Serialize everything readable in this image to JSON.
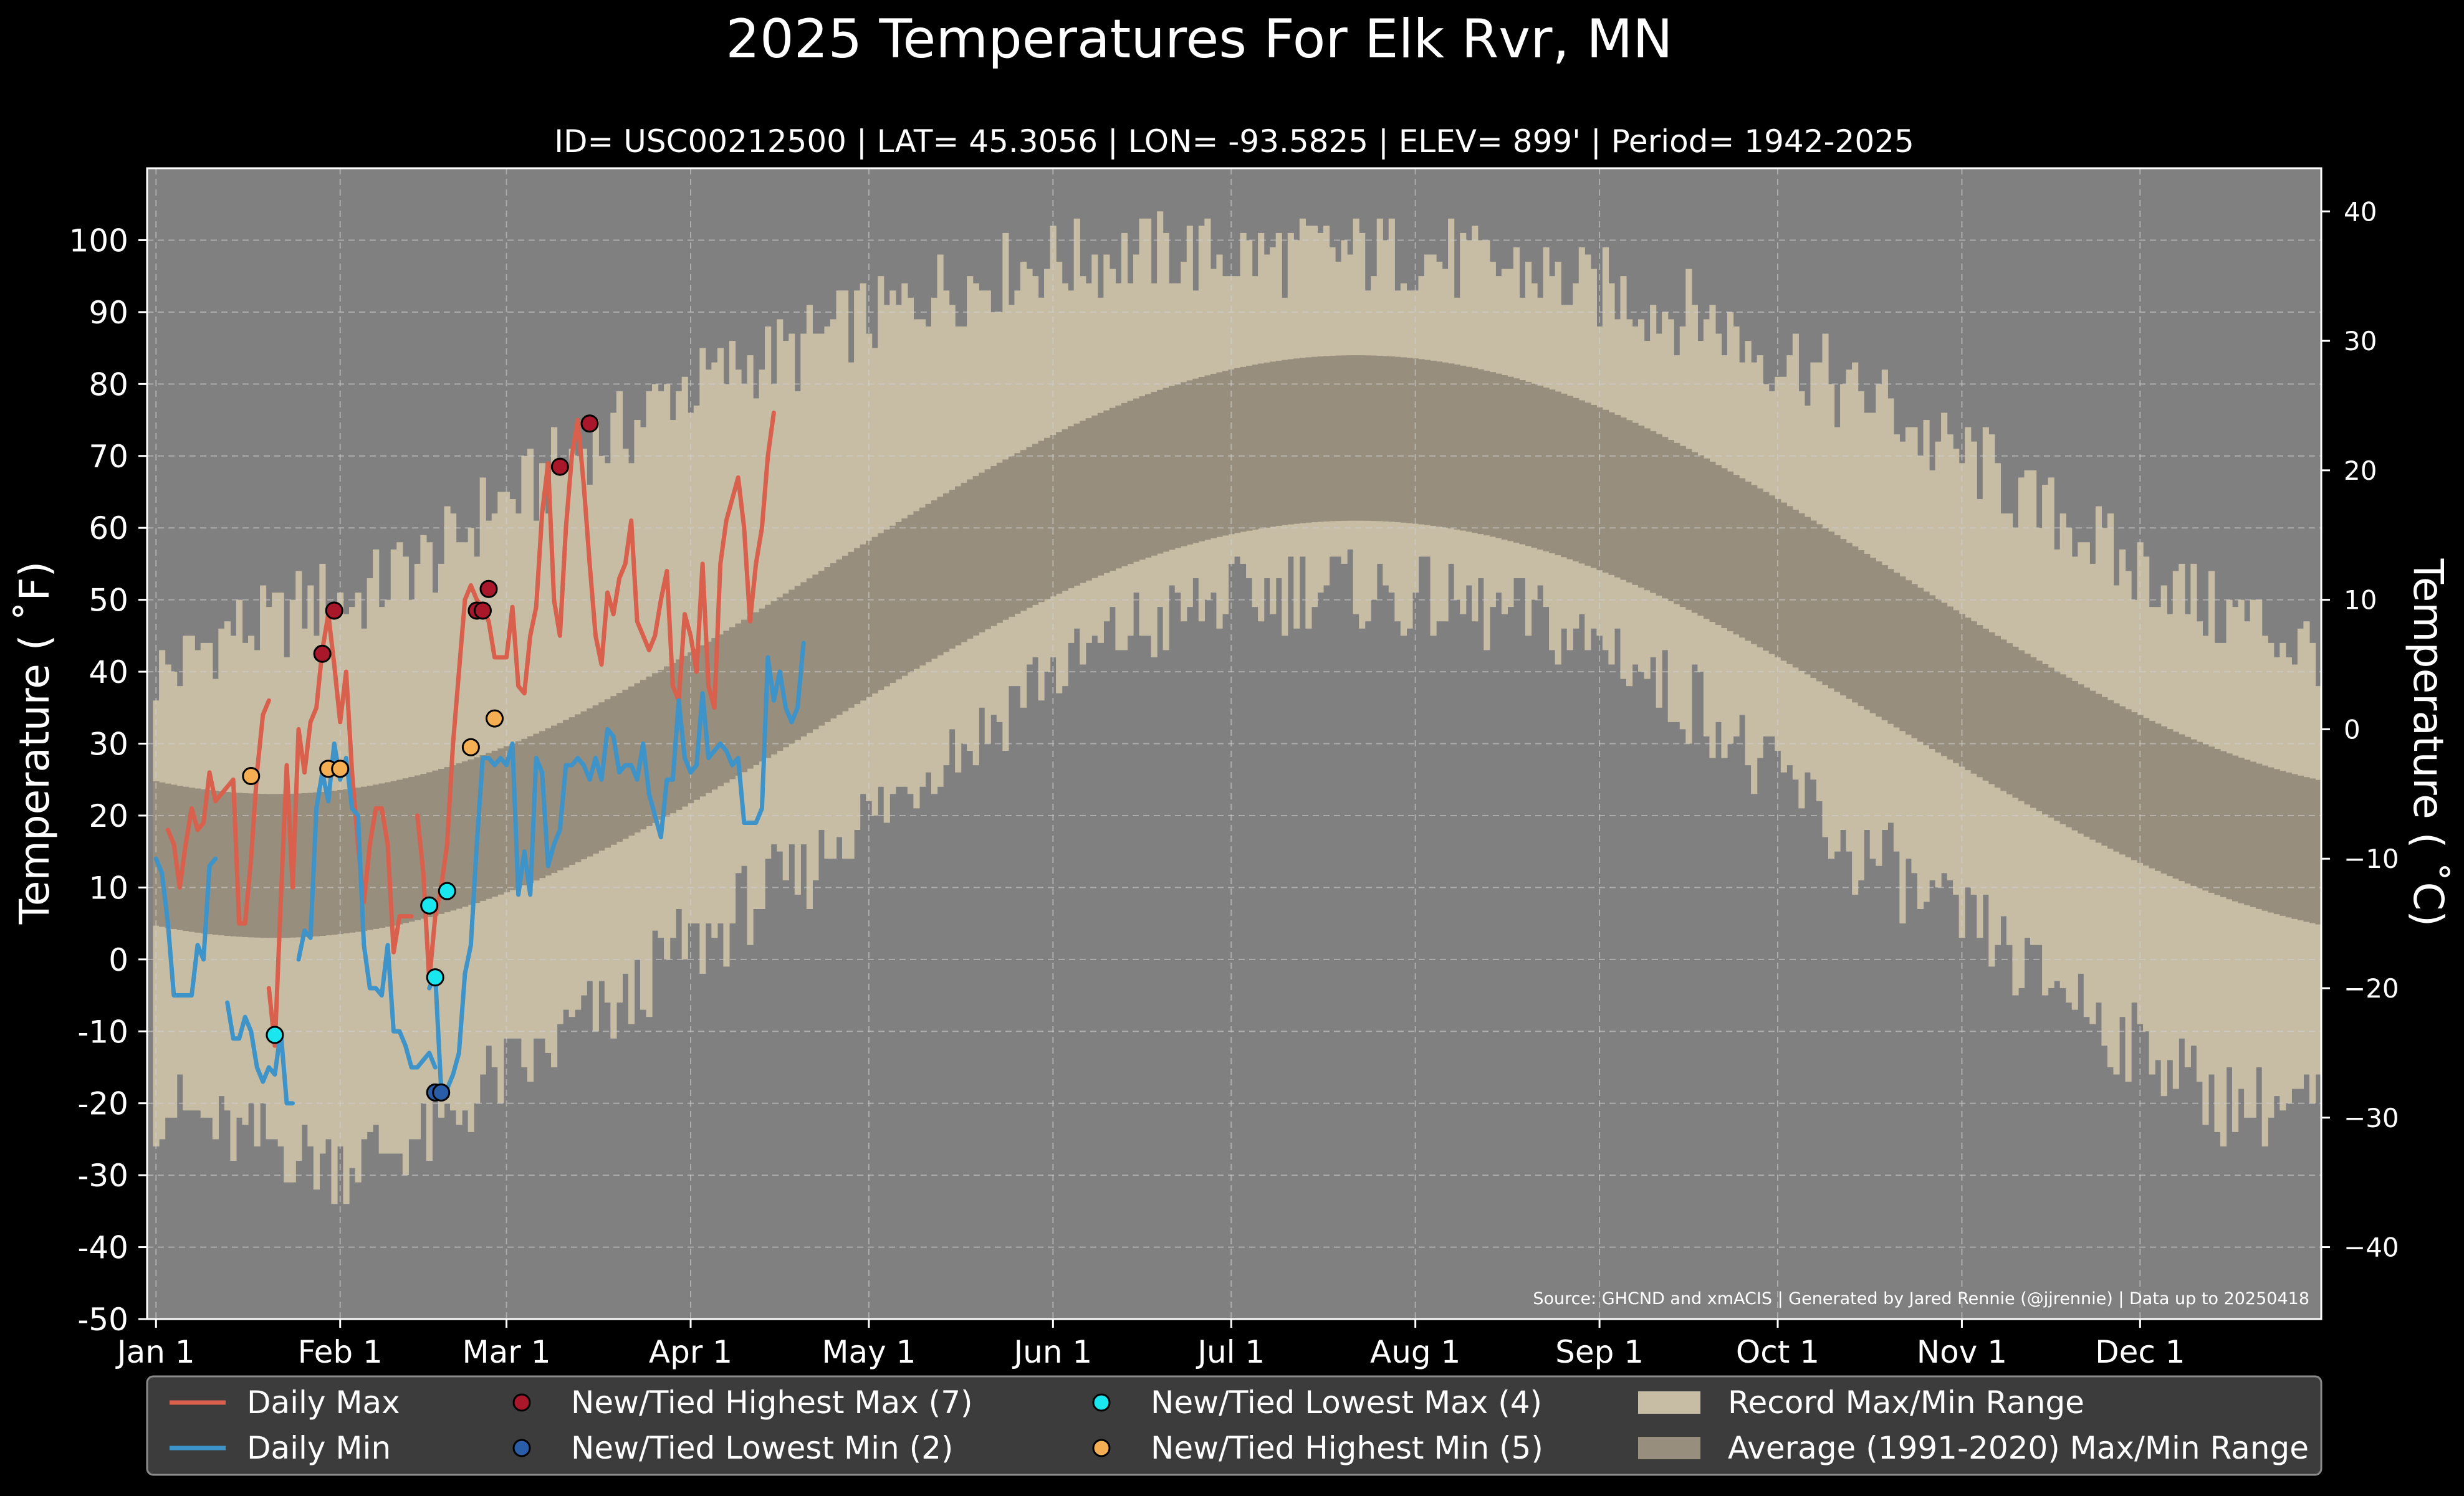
{
  "chart_data": {
    "type": "line",
    "title": "2025 Temperatures For Elk Rvr, MN",
    "subtitle": "ID= USC00212500 | LAT= 45.3056 | LON= -93.5825 | ELEV= 899' | Period= 1942-2025",
    "ylabel": "Temperature ( ˚F)",
    "y2label": "Temperature ( ˚C)",
    "source": "Source: GHCND and xmACIS | Generated by Jared Rennie (@jjrennie) | Data up to 20250418",
    "ylim": [
      -50,
      110
    ],
    "xlim": [
      -1.5,
      364.5
    ],
    "yticks": [
      -50,
      -40,
      -30,
      -20,
      -10,
      0,
      10,
      20,
      30,
      40,
      50,
      60,
      70,
      80,
      90,
      100
    ],
    "ytick_labels": [
      "-50",
      "-40",
      "-30",
      "-20",
      "-10",
      "0",
      "10",
      "20",
      "30",
      "40",
      "50",
      "60",
      "70",
      "80",
      "90",
      "100"
    ],
    "y2ticks_c": [
      -40,
      -30,
      -20,
      -10,
      0,
      10,
      20,
      30,
      40
    ],
    "y2tick_labels": [
      "−40",
      "−30",
      "−20",
      "−10",
      "0",
      "10",
      "20",
      "30",
      "40"
    ],
    "x_ticks": [
      {
        "day": 0,
        "label": "Jan 1"
      },
      {
        "day": 31,
        "label": "Feb 1"
      },
      {
        "day": 59,
        "label": "Mar 1"
      },
      {
        "day": 90,
        "label": "Apr 1"
      },
      {
        "day": 120,
        "label": "May 1"
      },
      {
        "day": 151,
        "label": "Jun 1"
      },
      {
        "day": 181,
        "label": "Jul 1"
      },
      {
        "day": 212,
        "label": "Aug 1"
      },
      {
        "day": 243,
        "label": "Sep 1"
      },
      {
        "day": 273,
        "label": "Oct 1"
      },
      {
        "day": 304,
        "label": "Nov 1"
      },
      {
        "day": 334,
        "label": "Dec 1"
      }
    ],
    "grid": true,
    "legend_position": "bottom",
    "colors": {
      "background": "#000000",
      "plot_bg": "#808080",
      "record_range": "#c7bda5",
      "average_range": "#978e7d",
      "daily_max": "#d9604c",
      "daily_min": "#3e93c8",
      "highest_max": "#a8172a",
      "lowest_min": "#2a5da8",
      "lowest_max": "#19e6ee",
      "highest_min": "#f6ae52",
      "legend_bg": "#3c3c3c"
    },
    "record_max_knots": {
      "days": [
        0,
        15,
        31,
        45,
        59,
        75,
        90,
        105,
        120,
        135,
        151,
        166,
        181,
        196,
        212,
        227,
        243,
        258,
        273,
        288,
        304,
        319,
        334,
        349,
        364
      ],
      "values": [
        40,
        46,
        50,
        55,
        64,
        72,
        80,
        84,
        89,
        94,
        97,
        98,
        98,
        98,
        98,
        96,
        93,
        90,
        84,
        78,
        70,
        62,
        54,
        48,
        43
      ]
    },
    "record_min_knots": {
      "days": [
        0,
        15,
        31,
        45,
        59,
        75,
        90,
        105,
        120,
        135,
        151,
        166,
        181,
        196,
        212,
        227,
        243,
        258,
        273,
        288,
        304,
        319,
        334,
        349,
        364
      ],
      "values": [
        -20,
        -25,
        -28,
        -25,
        -16,
        -8,
        2,
        10,
        20,
        30,
        40,
        46,
        50,
        52,
        50,
        48,
        44,
        36,
        25,
        14,
        5,
        -3,
        -12,
        -20,
        -20
      ]
    },
    "average_range": {
      "min_low": 3,
      "min_high": 61,
      "max_low": 23,
      "max_high": 84,
      "coldest_day": 20,
      "warmest_day": 202
    },
    "series": [
      {
        "name": "Daily Max",
        "type": "line",
        "segments": [
          {
            "start_day": 2,
            "values": [
              18,
              16,
              10,
              16,
              21,
              18,
              19,
              26,
              22,
              23,
              24,
              25,
              5,
              5,
              14,
              26,
              34,
              36
            ]
          },
          {
            "start_day": 19,
            "values": [
              -4,
              -12,
              8,
              27,
              10,
              32,
              26,
              33,
              35,
              43,
              48,
              41,
              33,
              40,
              26,
              16,
              8,
              16,
              21,
              21,
              16,
              1,
              6,
              6,
              6
            ]
          },
          {
            "start_day": 44,
            "values": [
              20,
              12,
              -3,
              6,
              10,
              16,
              30,
              40,
              50,
              52,
              50,
              49,
              47,
              42,
              42,
              42,
              49,
              38,
              37,
              45,
              49,
              62,
              69,
              50,
              45,
              60,
              70,
              75,
              66,
              55,
              45,
              41,
              51,
              48,
              53,
              55,
              61,
              47,
              45,
              43,
              45,
              50,
              54,
              38,
              36,
              48,
              45,
              40,
              55,
              38,
              35,
              55,
              61,
              64,
              67,
              60,
              47,
              55,
              60,
              70,
              76
            ]
          }
        ]
      },
      {
        "name": "Daily Min",
        "type": "line",
        "segments": [
          {
            "start_day": 0,
            "values": [
              14,
              12,
              5,
              -5,
              -5,
              -5,
              -5,
              2,
              0,
              13,
              14
            ]
          },
          {
            "start_day": 12,
            "values": [
              -6,
              -11,
              -11,
              -8,
              -10,
              -15,
              -17,
              -15,
              -16,
              -10,
              -20,
              -20
            ]
          },
          {
            "start_day": 24,
            "values": [
              0,
              4,
              3,
              21,
              26,
              22,
              30,
              25,
              28,
              21,
              20,
              2,
              -4,
              -4,
              -5,
              2,
              -10,
              -10,
              -12,
              -15,
              -15,
              -14,
              -13,
              -15
            ]
          },
          {
            "start_day": 46,
            "values": [
              -4,
              -2,
              -18,
              -18,
              -16,
              -13,
              -2,
              2,
              16,
              28,
              28,
              27,
              28,
              27,
              30,
              9,
              15,
              9,
              28,
              26,
              13,
              16,
              18,
              27,
              27,
              28,
              27,
              25,
              28,
              25,
              32,
              31,
              26,
              27,
              27,
              25,
              30,
              23,
              20,
              17,
              25,
              25,
              36,
              28,
              26,
              27,
              37,
              28,
              29,
              30,
              29,
              27,
              28,
              19,
              19,
              19,
              21,
              42,
              36,
              40,
              35,
              33,
              35,
              44
            ]
          }
        ]
      },
      {
        "name": "New/Tied Highest Max (7)",
        "type": "scatter",
        "points": [
          [
            28,
            42.5
          ],
          [
            30,
            48.5
          ],
          [
            54,
            48.5
          ],
          [
            55,
            48.5
          ],
          [
            56,
            51.5
          ],
          [
            68,
            68.5
          ],
          [
            73,
            74.5
          ]
        ]
      },
      {
        "name": "New/Tied Lowest Min (2)",
        "type": "scatter",
        "points": [
          [
            47,
            -18.5
          ],
          [
            48,
            -18.5
          ]
        ]
      },
      {
        "name": "New/Tied Lowest Max (4)",
        "type": "scatter",
        "points": [
          [
            20,
            -10.5
          ],
          [
            46,
            7.5
          ],
          [
            47,
            -2.5
          ],
          [
            49,
            9.5
          ]
        ]
      },
      {
        "name": "New/Tied Highest Min (5)",
        "type": "scatter",
        "points": [
          [
            16,
            25.5
          ],
          [
            29,
            26.5
          ],
          [
            31,
            26.5
          ],
          [
            53,
            29.5
          ],
          [
            57,
            33.5
          ]
        ]
      }
    ],
    "legend": [
      {
        "label": "Daily Max",
        "kind": "line",
        "color_key": "daily_max"
      },
      {
        "label": "Daily Min",
        "kind": "line",
        "color_key": "daily_min"
      },
      {
        "label": "New/Tied Highest Max (7)",
        "kind": "marker",
        "color_key": "highest_max"
      },
      {
        "label": "New/Tied Lowest Min (2)",
        "kind": "marker",
        "color_key": "lowest_min"
      },
      {
        "label": "New/Tied Lowest Max (4)",
        "kind": "marker",
        "color_key": "lowest_max"
      },
      {
        "label": "New/Tied Highest Min (5)",
        "kind": "marker",
        "color_key": "highest_min"
      },
      {
        "label": "Record Max/Min Range",
        "kind": "patch",
        "color_key": "record_range"
      },
      {
        "label": "Average (1991-2020) Max/Min Range",
        "kind": "patch",
        "color_key": "average_range"
      }
    ]
  }
}
